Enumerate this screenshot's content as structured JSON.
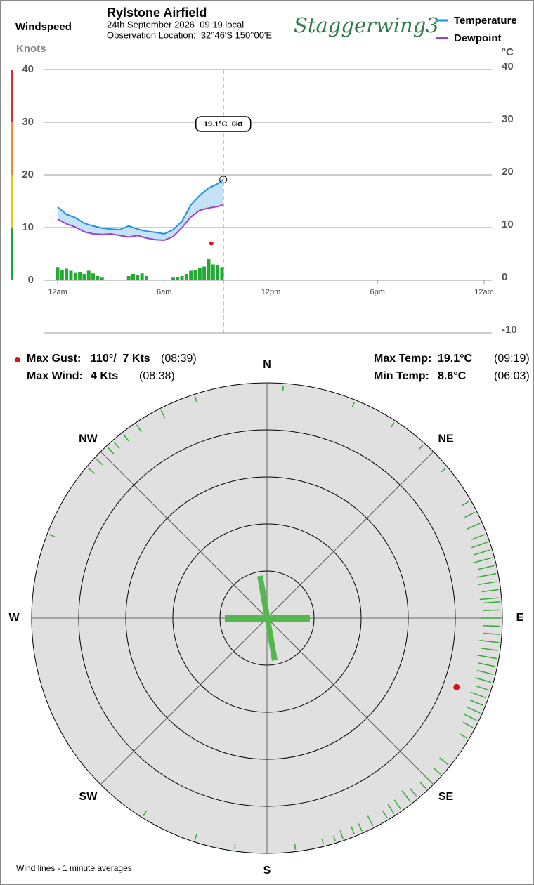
{
  "header": {
    "station": "Rylstone Airfield",
    "datetime": "24th September 2026  09:19 local",
    "location": "Observation Location:  32°46'S 150°00'E",
    "logo": "Staggerwing3"
  },
  "stats": {
    "max_gust": {
      "label": "Max Gust:",
      "value": "110°/  7 Kts",
      "time": "(08:39)"
    },
    "max_wind": {
      "label": "Max Wind:",
      "value": "4 Kts",
      "time": "(08:38)"
    },
    "max_temp": {
      "label": "Max Temp:",
      "value": "19.1°C",
      "time": "(09:19)"
    },
    "min_temp": {
      "label": "Min Temp:",
      "value": "8.6°C",
      "time": "(06:03)"
    }
  },
  "chart_data": [
    {
      "type": "line",
      "ylabel": "Windspeed",
      "yunits": "Knots",
      "y2label": "°C",
      "x": [
        0,
        0.5,
        1,
        1.5,
        2,
        2.5,
        3,
        3.5,
        4,
        4.5,
        5,
        5.5,
        6,
        6.5,
        7,
        7.5,
        8,
        8.5,
        9,
        9.32
      ],
      "xlim": [
        0,
        24
      ],
      "xticks": [
        {
          "value": 0,
          "label": "12am"
        },
        {
          "value": 6,
          "label": "6am"
        },
        {
          "value": 12,
          "label": "12pm"
        },
        {
          "value": 18,
          "label": "6pm"
        },
        {
          "value": 24,
          "label": "12am"
        }
      ],
      "ylim": [
        0,
        40
      ],
      "yticks": [
        0,
        10,
        20,
        30,
        40
      ],
      "y2lim": [
        -10,
        40
      ],
      "y2ticks": [
        -10,
        0,
        10,
        20,
        30,
        40
      ],
      "grid": true,
      "band_colors": [
        "#1fa83a",
        "#e8c619",
        "#ef8a2d",
        "#d62d2d"
      ],
      "fill_color": "#c5e3f7",
      "series": [
        {
          "name": "Temperature",
          "color": "#1e90e0",
          "axis": "y2",
          "values": [
            13.9,
            12.5,
            11.9,
            10.8,
            10.3,
            9.9,
            9.7,
            9.6,
            10.3,
            9.7,
            9.3,
            9.1,
            8.8,
            9.6,
            11.2,
            14.3,
            16.1,
            17.5,
            18.3,
            19.1
          ]
        },
        {
          "name": "Dewpoint",
          "color": "#a040d0",
          "axis": "y2",
          "values": [
            11.6,
            10.7,
            10.1,
            9.2,
            8.8,
            8.7,
            8.8,
            8.5,
            8.2,
            8.5,
            8.0,
            7.7,
            7.6,
            8.3,
            10.0,
            12.0,
            13.3,
            13.7,
            14.0,
            14.3
          ]
        },
        {
          "type": "bar",
          "color": "#22aa33",
          "x": [
            0,
            0.25,
            0.5,
            0.75,
            1,
            1.25,
            1.5,
            1.75,
            2,
            2.25,
            2.5,
            2.75,
            3,
            3.25,
            3.5,
            3.75,
            4,
            4.25,
            4.5,
            4.75,
            5,
            5.25,
            5.5,
            5.75,
            6,
            6.25,
            6.5,
            6.75,
            7,
            7.25,
            7.5,
            7.75,
            8,
            8.25,
            8.5,
            8.75,
            9,
            9.25
          ],
          "values": [
            2.5,
            2,
            2.2,
            1.8,
            1.5,
            1.6,
            1.2,
            1.8,
            1.3,
            0.8,
            0.5,
            0,
            0,
            0,
            0,
            0,
            0.8,
            1.2,
            1,
            1.3,
            0.8,
            0,
            0,
            0,
            0,
            0,
            0.5,
            0.6,
            0.8,
            1.2,
            1.8,
            2,
            2.3,
            2.6,
            4,
            3,
            2.8,
            2.5
          ]
        }
      ],
      "gust": {
        "x": 8.65,
        "value": 7,
        "color": "#dd1111"
      },
      "cursor": {
        "x": 9.32,
        "label": "19.1°C  0kt"
      }
    },
    {
      "type": "polar",
      "compass": [
        "N",
        "NE",
        "E",
        "SE",
        "S",
        "SW",
        "W",
        "NW"
      ],
      "color": "#33aa33",
      "directions": [
        4,
        22,
        33,
        42,
        50,
        60,
        63,
        66,
        69,
        71,
        73,
        75,
        77,
        79,
        81,
        83,
        85,
        86,
        88,
        90,
        92,
        94,
        96,
        98,
        100,
        102,
        104,
        106,
        108,
        110,
        112,
        114,
        116,
        118,
        121,
        129,
        132,
        135,
        137,
        140,
        142,
        145,
        147,
        149,
        153,
        156,
        158,
        161,
        163,
        166,
        173,
        188,
        198,
        212,
        291,
        310,
        313,
        317,
        319,
        322,
        326,
        333,
        342
      ],
      "speeds": [
        1,
        1,
        1,
        1,
        1,
        1.5,
        2,
        2.5,
        2.5,
        3,
        3,
        3.5,
        3,
        3.5,
        3.5,
        3,
        3.5,
        3,
        3,
        3.5,
        3,
        3,
        3.5,
        3,
        3.5,
        3,
        3,
        3,
        2.5,
        3,
        2.5,
        2.5,
        2.5,
        2,
        1.5,
        2,
        1.5,
        2,
        1.5,
        2,
        2.5,
        2,
        2,
        1.5,
        2,
        1.5,
        1.5,
        1.5,
        1,
        1,
        1,
        1,
        1,
        1,
        1,
        1.5,
        1.5,
        1.5,
        1.5,
        1.5,
        1.5,
        1.5,
        1
      ],
      "gust": {
        "direction": 110,
        "speed": 7,
        "color": "#dd1111"
      },
      "caption": "Wind lines - 1 minute averages"
    }
  ]
}
